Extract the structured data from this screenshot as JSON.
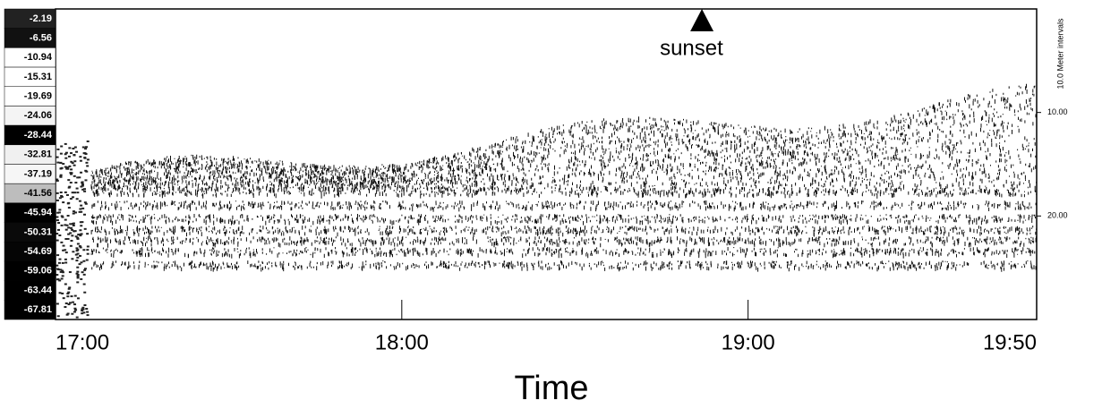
{
  "chart_data": {
    "type": "echogram",
    "xlabel": "Time",
    "xlim": [
      1020,
      1190
    ],
    "xticks": [
      {
        "value": 1020,
        "label": "17:00"
      },
      {
        "value": 1080,
        "label": "18:00"
      },
      {
        "value": 1140,
        "label": "19:00"
      },
      {
        "value": 1190,
        "label": "19:50"
      }
    ],
    "y2label": "10.0 Meter intervals",
    "y2lim": [
      0,
      30
    ],
    "y2ticks": [
      {
        "value": 10,
        "label": "10.00"
      },
      {
        "value": 20,
        "label": "20.00"
      }
    ],
    "annotations": [
      {
        "text": "sunset",
        "x": 1132
      }
    ],
    "color_scale": {
      "values": [
        -2.19,
        -6.56,
        -10.94,
        -15.31,
        -19.69,
        -24.06,
        -28.44,
        -32.81,
        -37.19,
        -41.56,
        -45.94,
        -50.31,
        -54.69,
        -59.06,
        -63.44,
        -67.81
      ],
      "colors": [
        "#222222",
        "#111111",
        "#ffffff",
        "#ffffff",
        "#ffffff",
        "#f4f4f4",
        "#000000",
        "#f0f0f0",
        "#f6f6f6",
        "#bdbdbd",
        "#000000",
        "#0a0a0a",
        "#050505",
        "#000000",
        "#000000",
        "#000000"
      ]
    }
  }
}
